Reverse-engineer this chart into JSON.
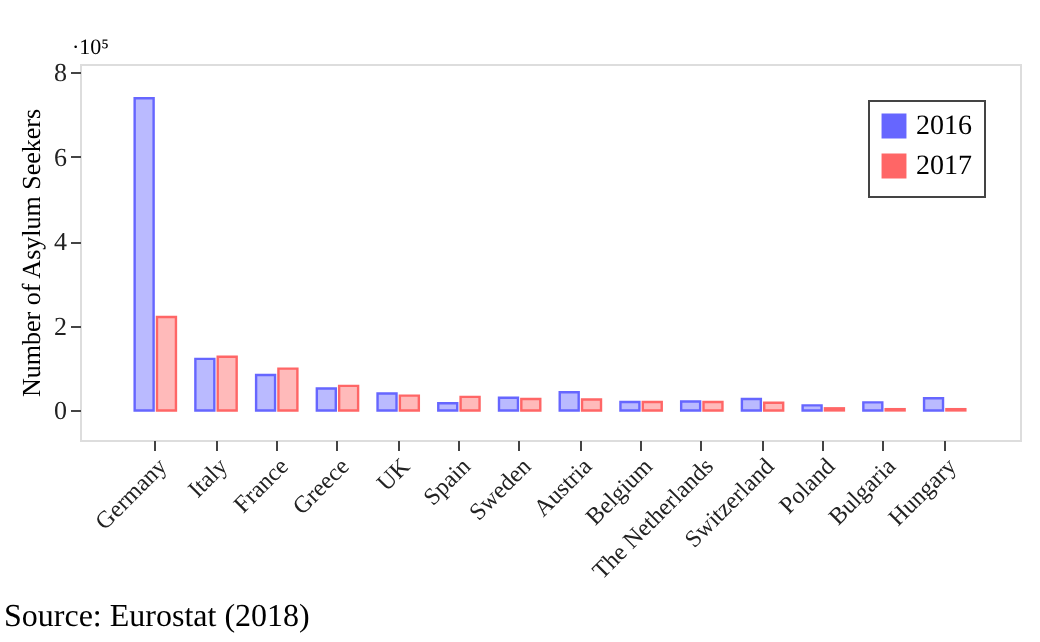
{
  "chart_data": {
    "type": "bar",
    "categories": [
      "Germany",
      "Italy",
      "France",
      "Greece",
      "UK",
      "Spain",
      "Sweden",
      "Austria",
      "Belgium",
      "The Netherlands",
      "Switzerland",
      "Poland",
      "Bulgaria",
      "Hungary"
    ],
    "series": [
      {
        "name": "2016",
        "color": "#6666ff",
        "values": [
          7.39,
          1.22,
          0.84,
          0.52,
          0.4,
          0.17,
          0.3,
          0.43,
          0.2,
          0.21,
          0.27,
          0.12,
          0.19,
          0.29
        ]
      },
      {
        "name": "2017",
        "color": "#ff6666",
        "values": [
          2.21,
          1.27,
          0.99,
          0.58,
          0.35,
          0.32,
          0.27,
          0.26,
          0.2,
          0.2,
          0.18,
          0.05,
          0.03,
          0.03
        ]
      }
    ],
    "ylabel": "Number of Asylum Seekers",
    "ylim": [
      -0.7,
      8.2
    ],
    "yticks": [
      0,
      2,
      4,
      6,
      8
    ],
    "annotations": [
      "·10⁵",
      "Source: Eurostat (2018)"
    ],
    "legend": "top right",
    "grid": false
  }
}
